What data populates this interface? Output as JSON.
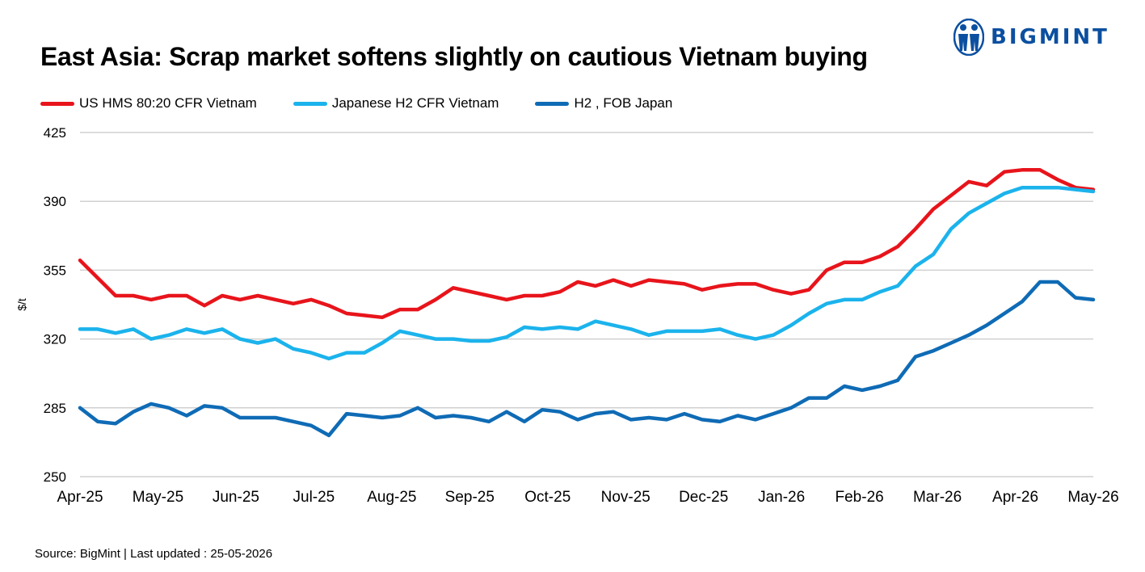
{
  "brand": {
    "name": "BIGMINT",
    "logo_icon": "people-figures-icon",
    "color": "#0b4fa0"
  },
  "title": "East Asia: Scrap market softens slightly on cautious Vietnam buying",
  "source": "Source: BigMint  | Last updated : 25-05-2026",
  "chart_data": {
    "type": "line",
    "title": "East Asia: Scrap market softens slightly on cautious Vietnam buying",
    "xlabel": "",
    "ylabel": "$/t",
    "ylim": [
      250,
      425
    ],
    "yticks": [
      "250",
      "285",
      "320",
      "355",
      "390",
      "425"
    ],
    "xticks": [
      "Apr-25",
      "May-25",
      "Jun-25",
      "Jul-25",
      "Aug-25",
      "Sep-25",
      "Oct-25",
      "Nov-25",
      "Dec-25",
      "Jan-26",
      "Feb-26",
      "Mar-26",
      "Apr-26",
      "May-26"
    ],
    "grid": true,
    "legend_position": "top-left",
    "series": [
      {
        "name": "US HMS 80:20 CFR Vietnam",
        "color": "#e8141b",
        "values": [
          360,
          351,
          342,
          342,
          340,
          342,
          342,
          337,
          342,
          340,
          342,
          340,
          338,
          340,
          337,
          333,
          332,
          331,
          335,
          335,
          340,
          346,
          344,
          342,
          340,
          342,
          342,
          344,
          349,
          347,
          350,
          347,
          350,
          349,
          348,
          345,
          347,
          348,
          348,
          345,
          343,
          345,
          355,
          359,
          359,
          362,
          367,
          376,
          386,
          393,
          400,
          398,
          405,
          406,
          406,
          401,
          397,
          396
        ],
        "end_label": "396"
      },
      {
        "name": "Japanese H2 CFR Vietnam",
        "color": "#1bb3ec",
        "values": [
          325,
          325,
          323,
          325,
          320,
          322,
          325,
          323,
          325,
          320,
          318,
          320,
          315,
          313,
          310,
          313,
          313,
          318,
          324,
          322,
          320,
          320,
          319,
          319,
          321,
          326,
          325,
          326,
          325,
          329,
          327,
          325,
          322,
          324,
          324,
          324,
          325,
          322,
          320,
          322,
          327,
          333,
          338,
          340,
          340,
          344,
          347,
          357,
          363,
          376,
          384,
          389,
          394,
          397,
          397,
          397,
          396,
          395
        ],
        "end_label": "395"
      },
      {
        "name": "H2 , FOB Japan",
        "color": "#0f6bb5",
        "values": [
          285,
          278,
          277,
          283,
          287,
          285,
          281,
          286,
          285,
          280,
          280,
          280,
          278,
          276,
          271,
          282,
          281,
          280,
          281,
          285,
          280,
          281,
          280,
          278,
          283,
          278,
          284,
          283,
          279,
          282,
          283,
          279,
          280,
          279,
          282,
          279,
          278,
          281,
          279,
          282,
          285,
          290,
          290,
          296,
          294,
          296,
          299,
          311,
          314,
          318,
          322,
          327,
          333,
          339,
          349,
          349,
          341,
          340
        ],
        "end_label": "340"
      }
    ]
  }
}
